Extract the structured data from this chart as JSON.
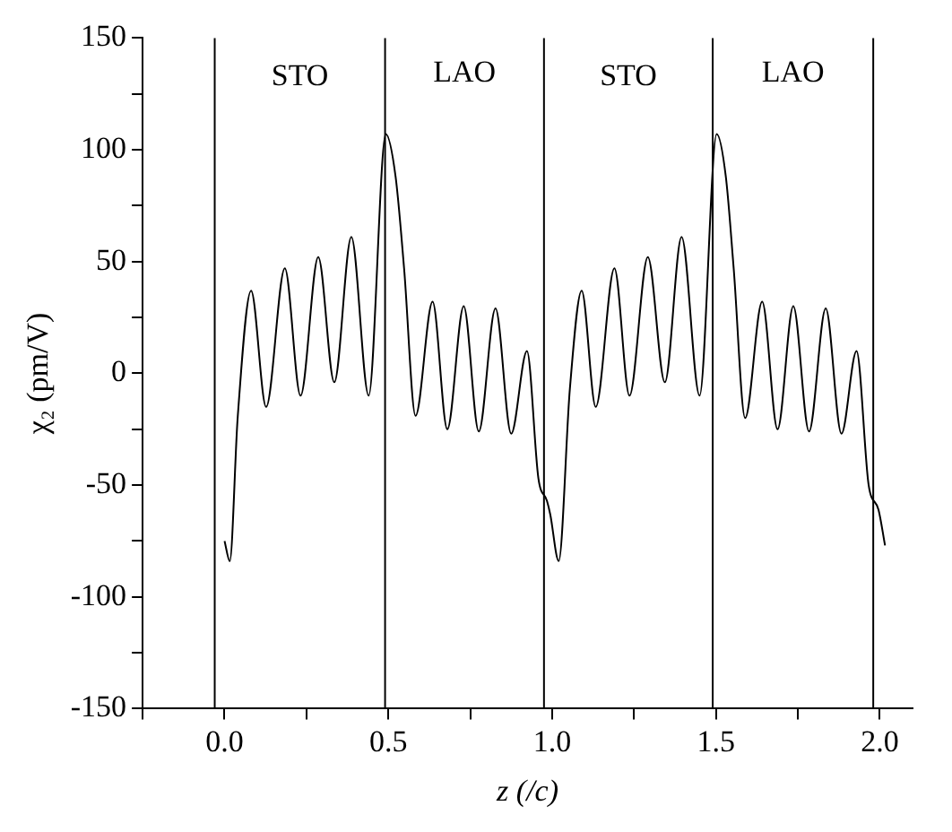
{
  "chart_data": {
    "type": "line",
    "xlabel": "z (/c)",
    "ylabel": "χ₂ (pm/V)",
    "x": [
      0.0,
      0.016,
      0.04,
      0.081,
      0.127,
      0.184,
      0.232,
      0.286,
      0.335,
      0.387,
      0.44,
      0.492,
      0.522,
      0.548,
      0.583,
      0.635,
      0.68,
      0.73,
      0.776,
      0.827,
      0.875,
      0.923,
      0.958,
      0.984,
      0.994,
      1.02,
      1.054,
      1.09,
      1.133,
      1.19,
      1.236,
      1.292,
      1.344,
      1.395,
      1.45,
      1.502,
      1.53,
      1.554,
      1.589,
      1.641,
      1.688,
      1.736,
      1.784,
      1.835,
      1.883,
      1.929,
      1.966,
      1.996,
      2.016
    ],
    "series": [
      {
        "color": "#000000",
        "values": [
          -75,
          -84,
          -20,
          37,
          -15,
          47,
          -10,
          52,
          -4,
          61,
          -10,
          107,
          88,
          47,
          -19,
          32,
          -25,
          30,
          -26,
          29,
          -27,
          10,
          -47,
          -57,
          -63,
          -84,
          -7,
          37,
          -15,
          47,
          -10,
          52,
          -4,
          61,
          -10,
          107,
          88,
          47,
          -20,
          32,
          -25,
          30,
          -26,
          29,
          -27,
          10,
          -50,
          -61,
          -77
        ]
      }
    ],
    "xlim": [
      -0.25,
      2.1
    ],
    "ylim": [
      -150,
      150
    ],
    "xticks": [
      {
        "value": -0.25,
        "label": null
      },
      {
        "value": 0,
        "label": "0.0"
      },
      {
        "value": 0.25,
        "label": null
      },
      {
        "value": 0.5,
        "label": "0.5"
      },
      {
        "value": 0.75,
        "label": null
      },
      {
        "value": 1,
        "label": "1.0"
      },
      {
        "value": 1.25,
        "label": null
      },
      {
        "value": 1.5,
        "label": "1.5"
      },
      {
        "value": 1.75,
        "label": null
      },
      {
        "value": 2,
        "label": "2.0"
      }
    ],
    "yticks": [
      -150,
      {
        "value": -125,
        "label": null
      },
      -100,
      {
        "value": -75,
        "label": null
      },
      -50,
      {
        "value": -25,
        "label": null
      },
      0,
      {
        "value": 25,
        "label": null
      },
      50,
      {
        "value": 75,
        "label": null
      },
      100,
      {
        "value": 125,
        "label": null
      },
      150
    ],
    "ref_lines": [
      {
        "axis": "x",
        "value": -0.03,
        "color": "#000000"
      },
      {
        "axis": "x",
        "value": 0.49,
        "color": "#000000"
      },
      {
        "axis": "x",
        "value": 0.975,
        "color": "#000000"
      },
      {
        "axis": "x",
        "value": 1.49,
        "color": "#000000"
      },
      {
        "axis": "x",
        "value": 1.98,
        "color": "#000000"
      }
    ],
    "annotations": [
      "STO",
      "LAO",
      "STO",
      "LAO"
    ],
    "grid": false,
    "legend": false,
    "marker": "none",
    "line_style": "solid"
  }
}
